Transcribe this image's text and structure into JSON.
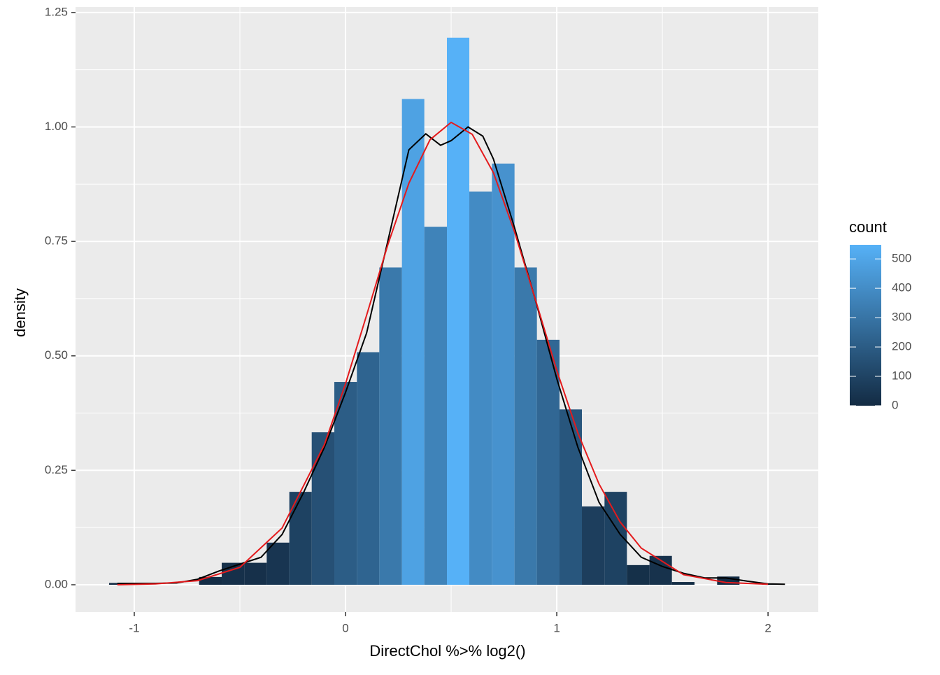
{
  "chart_data": {
    "type": "histogram",
    "x_label": "DirectChol %>% log2()",
    "y_label": "density",
    "bins": [
      -1.119,
      -1.012,
      -0.906,
      -0.799,
      -0.693,
      -0.586,
      -0.479,
      -0.373,
      -0.266,
      -0.16,
      -0.053,
      0.054,
      0.16,
      0.267,
      0.373,
      0.48,
      0.586,
      0.693,
      0.8,
      0.906,
      1.013,
      1.119,
      1.226,
      1.332,
      1.439,
      1.545,
      1.652,
      1.759,
      1.865,
      1.972,
      2.078
    ],
    "values": [
      0.004,
      0,
      0,
      0,
      0.017,
      0.048,
      0.048,
      0.092,
      0.203,
      0.333,
      0.443,
      0.508,
      0.693,
      1.061,
      0.782,
      1.195,
      0.859,
      0.92,
      0.693,
      0.535,
      0.383,
      0.171,
      0.203,
      0.043,
      0.063,
      0.006,
      0,
      0.018,
      0,
      0.002
    ],
    "lines": [
      {
        "color": "#000000",
        "x": [
          -1.08,
          -0.9,
          -0.8,
          -0.7,
          -0.6,
          -0.5,
          -0.4,
          -0.3,
          -0.2,
          -0.1,
          0,
          0.1,
          0.2,
          0.3,
          0.38,
          0.45,
          0.5,
          0.58,
          0.65,
          0.7,
          0.8,
          0.9,
          1.0,
          1.1,
          1.2,
          1.3,
          1.4,
          1.5,
          1.6,
          1.7,
          1.8,
          1.9,
          2.0,
          2.08
        ],
        "y": [
          0.003,
          0.003,
          0.004,
          0.012,
          0.03,
          0.045,
          0.06,
          0.11,
          0.2,
          0.3,
          0.42,
          0.55,
          0.75,
          0.95,
          0.985,
          0.96,
          0.97,
          1.0,
          0.98,
          0.93,
          0.78,
          0.62,
          0.45,
          0.3,
          0.18,
          0.11,
          0.06,
          0.04,
          0.025,
          0.015,
          0.015,
          0.008,
          0.002,
          0.001
        ]
      },
      {
        "color": "#e41a1c",
        "x": [
          -1.08,
          -0.9,
          -0.7,
          -0.5,
          -0.3,
          -0.1,
          0,
          0.1,
          0.2,
          0.3,
          0.4,
          0.5,
          0.6,
          0.7,
          0.8,
          0.9,
          1.0,
          1.1,
          1.2,
          1.3,
          1.4,
          1.6,
          1.8,
          2.0
        ],
        "y": [
          0,
          0.002,
          0.009,
          0.038,
          0.124,
          0.306,
          0.439,
          0.589,
          0.742,
          0.877,
          0.972,
          1.01,
          0.984,
          0.9,
          0.771,
          0.621,
          0.468,
          0.331,
          0.22,
          0.137,
          0.08,
          0.022,
          0.005,
          0.001
        ]
      }
    ],
    "xlim": [
      -1.278,
      2.238
    ],
    "ylim": [
      -0.0596,
      1.262
    ],
    "xticks": [
      -1,
      0,
      1,
      2
    ],
    "yticks": [
      {
        "value": 0,
        "label": "0.00"
      },
      {
        "value": 0.25,
        "label": "0.25"
      },
      {
        "value": 0.5,
        "label": "0.50"
      },
      {
        "value": 0.75,
        "label": "0.75"
      },
      {
        "value": 1,
        "label": "1.00"
      },
      {
        "value": 1.25,
        "label": "1.25"
      }
    ],
    "minor_xticks": [
      -0.5,
      0.5,
      1.5
    ],
    "minor_yticks": [
      0.125,
      0.375,
      0.625,
      0.875,
      1.125
    ],
    "grid": true,
    "colorbar": {
      "title": "count",
      "lim": [
        0,
        548
      ],
      "ticks": [
        0,
        100,
        200,
        300,
        400,
        500
      ],
      "low": "#132B43",
      "high": "#56B1F7"
    }
  }
}
